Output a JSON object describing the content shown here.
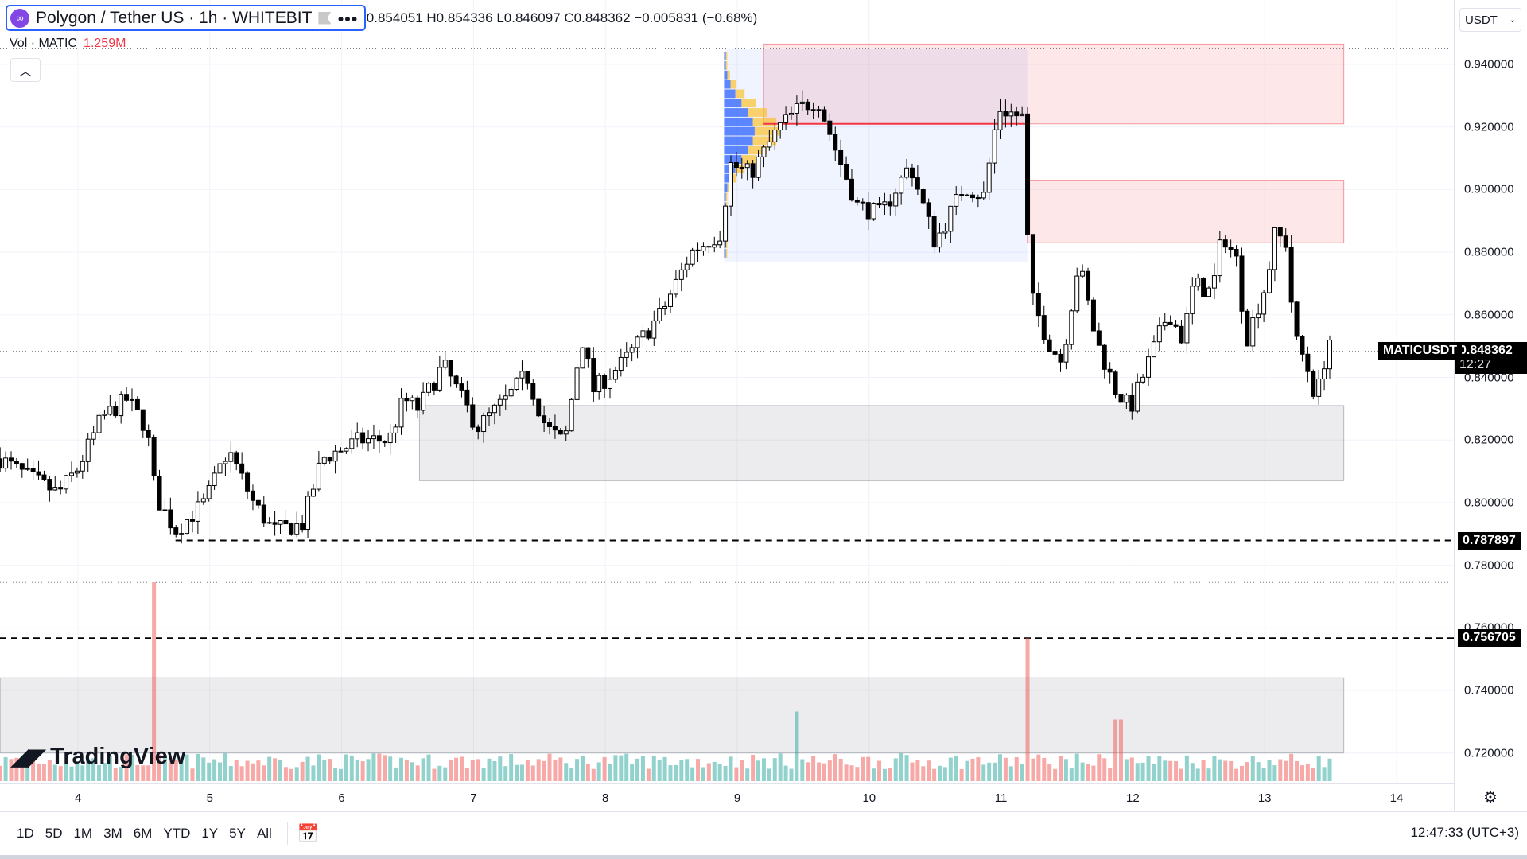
{
  "header": {
    "symbol_title": "Polygon / Tether US · 1h · WHITEBIT",
    "more_icon": "ellipsis-icon",
    "ohlc": "0.854051 H0.854336 L0.846097 C0.848362 −0.005831 (−0.68%)"
  },
  "volume": {
    "label": "Vol · MATIC",
    "value": "1.259M"
  },
  "currency": "USDT",
  "price_axis": [
    "0.940000",
    "0.920000",
    "0.900000",
    "0.880000",
    "0.860000",
    "0.840000",
    "0.820000",
    "0.800000",
    "0.780000",
    "0.760000",
    "0.740000",
    "0.720000"
  ],
  "time_axis": [
    "4",
    "5",
    "6",
    "7",
    "8",
    "9",
    "10",
    "11",
    "12",
    "13",
    "14"
  ],
  "current": {
    "ticker": "MATICUSDT",
    "price": "0.848362",
    "countdown": "12:27"
  },
  "levels": [
    {
      "price": "0.787897"
    },
    {
      "price": "0.756705"
    }
  ],
  "watermark": "TradingView",
  "toolbar": {
    "ranges": [
      "1D",
      "5D",
      "1M",
      "3M",
      "6M",
      "YTD",
      "1Y",
      "5Y",
      "All"
    ],
    "time": "12:47:33 (UTC+3)"
  },
  "colors": {
    "up": "#ffffff",
    "down": "#000000",
    "resistance_zone": "#f23645",
    "support_zone": "#787b86",
    "vol_up": "#26a69a",
    "vol_down": "#ef5350"
  },
  "chart_data": {
    "type": "candlestick",
    "interval": "1h",
    "ylim": [
      0.715,
      0.95
    ],
    "xlim": [
      3.41,
      14.3
    ],
    "price_path": [
      [
        3.41,
        0.814
      ],
      [
        3.63,
        0.808
      ],
      [
        3.85,
        0.803
      ],
      [
        4.0,
        0.811
      ],
      [
        4.18,
        0.827
      ],
      [
        4.37,
        0.833
      ],
      [
        4.52,
        0.824
      ],
      [
        4.59,
        0.802
      ],
      [
        4.74,
        0.791
      ],
      [
        4.96,
        0.8
      ],
      [
        5.14,
        0.817
      ],
      [
        5.33,
        0.8
      ],
      [
        5.48,
        0.791
      ],
      [
        5.7,
        0.793
      ],
      [
        5.85,
        0.814
      ],
      [
        6.14,
        0.82
      ],
      [
        6.36,
        0.82
      ],
      [
        6.47,
        0.833
      ],
      [
        6.58,
        0.83
      ],
      [
        6.77,
        0.844
      ],
      [
        7.03,
        0.824
      ],
      [
        7.25,
        0.833
      ],
      [
        7.4,
        0.841
      ],
      [
        7.55,
        0.824
      ],
      [
        7.69,
        0.819
      ],
      [
        7.82,
        0.853
      ],
      [
        7.91,
        0.836
      ],
      [
        8.14,
        0.845
      ],
      [
        8.43,
        0.861
      ],
      [
        8.65,
        0.88
      ],
      [
        8.87,
        0.886
      ],
      [
        8.95,
        0.908
      ],
      [
        9.1,
        0.905
      ],
      [
        9.32,
        0.92
      ],
      [
        9.47,
        0.926
      ],
      [
        9.61,
        0.929
      ],
      [
        9.76,
        0.911
      ],
      [
        9.91,
        0.895
      ],
      [
        10.09,
        0.892
      ],
      [
        10.31,
        0.908
      ],
      [
        10.5,
        0.883
      ],
      [
        10.72,
        0.901
      ],
      [
        10.87,
        0.898
      ],
      [
        10.98,
        0.926
      ],
      [
        11.16,
        0.923
      ],
      [
        11.22,
        0.867
      ],
      [
        11.35,
        0.852
      ],
      [
        11.46,
        0.845
      ],
      [
        11.59,
        0.877
      ],
      [
        11.72,
        0.852
      ],
      [
        11.87,
        0.836
      ],
      [
        11.98,
        0.83
      ],
      [
        12.12,
        0.845
      ],
      [
        12.27,
        0.861
      ],
      [
        12.38,
        0.852
      ],
      [
        12.46,
        0.87
      ],
      [
        12.6,
        0.867
      ],
      [
        12.68,
        0.886
      ],
      [
        12.79,
        0.877
      ],
      [
        12.86,
        0.852
      ],
      [
        13.01,
        0.87
      ],
      [
        13.08,
        0.886
      ],
      [
        13.16,
        0.883
      ],
      [
        13.23,
        0.852
      ],
      [
        13.31,
        0.845
      ],
      [
        13.39,
        0.833
      ],
      [
        13.49,
        0.853
      ],
      [
        13.51,
        0.848362
      ]
    ],
    "zones": [
      {
        "kind": "resistance",
        "from": 9.2,
        "to": 13.6,
        "low": 0.921,
        "high": 0.9465
      },
      {
        "kind": "resistance",
        "from": 11.2,
        "to": 13.6,
        "low": 0.883,
        "high": 0.903
      },
      {
        "kind": "support",
        "from": 6.59,
        "to": 13.6,
        "low": 0.807,
        "high": 0.831
      },
      {
        "kind": "support",
        "from": 3.41,
        "to": 13.6,
        "low": 0.72,
        "high": 0.744
      }
    ],
    "volume_spikes": [
      [
        4.58,
        1.0
      ],
      [
        9.45,
        0.35
      ],
      [
        11.2,
        0.72
      ],
      [
        11.88,
        0.31
      ]
    ],
    "dotted_levels": [
      0.848362,
      0.7745,
      0.9452
    ]
  }
}
